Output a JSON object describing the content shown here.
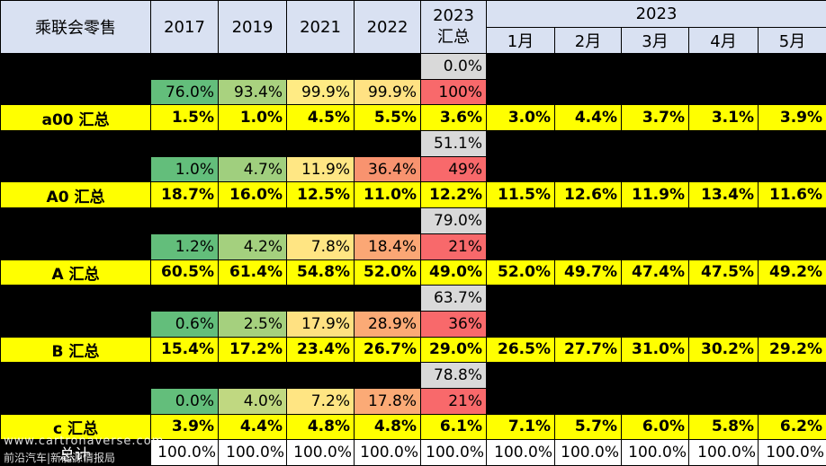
{
  "header": {
    "title": "乘联会零售",
    "years": [
      "2017",
      "2019",
      "2021",
      "2022"
    ],
    "col_2023_line1": "2023",
    "col_2023_line2": "汇总",
    "group_2023": "2023",
    "months": [
      "1月",
      "2月",
      "3月",
      "4月",
      "5月"
    ]
  },
  "segments": [
    {
      "label": "a00 汇总",
      "sub1": "0.0%",
      "sub2": [
        "76.0%",
        "93.4%",
        "99.9%",
        "99.9%",
        "100%"
      ],
      "values": [
        "1.5%",
        "1.0%",
        "4.5%",
        "5.5%",
        "3.6%",
        "3.0%",
        "4.4%",
        "3.7%",
        "3.1%",
        "3.9%"
      ]
    },
    {
      "label": "A0 汇总",
      "sub1": "51.1%",
      "sub2": [
        "1.0%",
        "4.7%",
        "11.9%",
        "36.4%",
        "49%"
      ],
      "values": [
        "18.7%",
        "16.0%",
        "12.5%",
        "11.0%",
        "12.2%",
        "11.5%",
        "12.6%",
        "11.9%",
        "13.4%",
        "11.6%"
      ]
    },
    {
      "label": "A 汇总",
      "sub1": "79.0%",
      "sub2": [
        "1.2%",
        "4.2%",
        "7.8%",
        "18.4%",
        "21%"
      ],
      "values": [
        "60.5%",
        "61.4%",
        "54.8%",
        "52.0%",
        "49.0%",
        "52.0%",
        "49.7%",
        "47.4%",
        "47.5%",
        "49.2%"
      ]
    },
    {
      "label": "B 汇总",
      "sub1": "63.7%",
      "sub2": [
        "0.6%",
        "2.5%",
        "17.9%",
        "28.9%",
        "36%"
      ],
      "values": [
        "15.4%",
        "17.2%",
        "23.4%",
        "26.7%",
        "29.0%",
        "26.5%",
        "27.7%",
        "31.0%",
        "30.2%",
        "29.2%"
      ]
    },
    {
      "label": "c 汇总",
      "sub1": "78.8%",
      "sub2": [
        "0.0%",
        "4.0%",
        "7.2%",
        "17.8%",
        "21%"
      ],
      "values": [
        "3.9%",
        "4.4%",
        "4.8%",
        "4.8%",
        "6.1%",
        "7.1%",
        "5.7%",
        "6.0%",
        "5.8%",
        "6.2%"
      ]
    }
  ],
  "sub2_colors": [
    [
      "#63be7b",
      "#a9d27f",
      "#ffeb84",
      "#ffe283",
      "#f8696b"
    ],
    [
      "#63be7b",
      "#a0cf7e",
      "#ffe784",
      "#f8936f",
      "#f8696b"
    ],
    [
      "#63be7b",
      "#a4d07e",
      "#ffe583",
      "#fba775",
      "#f8696b"
    ],
    [
      "#63be7b",
      "#a5d07e",
      "#ffe182",
      "#fbaa76",
      "#f8696b"
    ],
    [
      "#63be7b",
      "#c0d881",
      "#ffe583",
      "#fbaa76",
      "#f8696b"
    ]
  ],
  "total": {
    "label": "总计",
    "values": [
      "100.0%",
      "100.0%",
      "100.0%",
      "100.0%",
      "100.0%",
      "100.0%",
      "100.0%",
      "100.0%",
      "100.0%",
      "100.0%"
    ]
  },
  "watermark": {
    "line1": "www.cartronaverse.com",
    "line2": "前沿汽车|新能源情报局"
  }
}
